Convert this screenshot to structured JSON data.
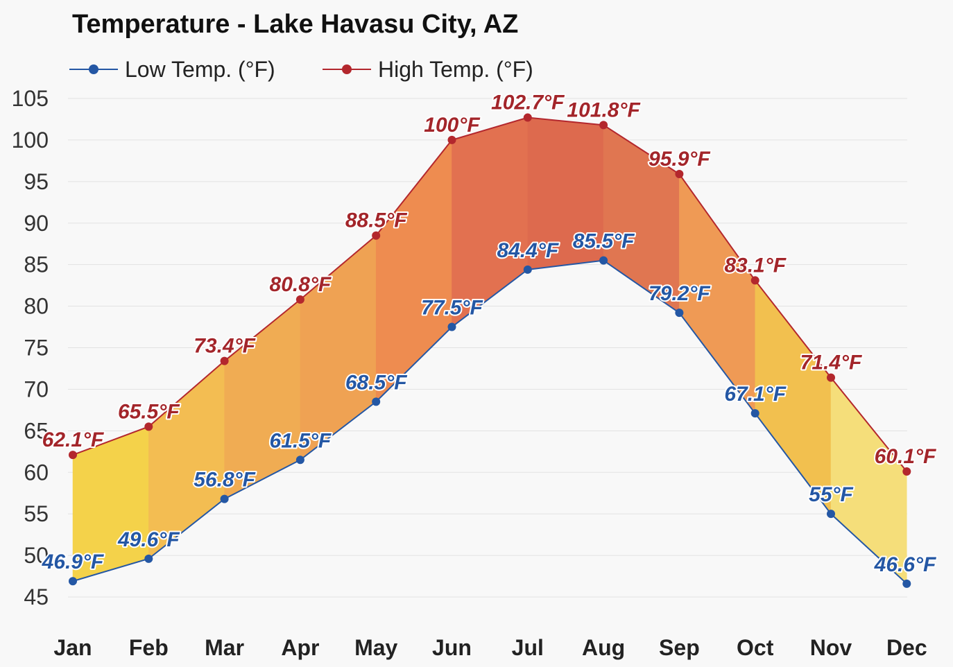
{
  "chart_data": {
    "type": "area",
    "title": "Temperature - Lake Havasu City, AZ",
    "categories": [
      "Jan",
      "Feb",
      "Mar",
      "Apr",
      "May",
      "Jun",
      "Jul",
      "Aug",
      "Sep",
      "Oct",
      "Nov",
      "Dec"
    ],
    "series": [
      {
        "name": "Low Temp. (°F)",
        "color": "#2457a4",
        "values": [
          46.9,
          49.6,
          56.8,
          61.5,
          68.5,
          77.5,
          84.4,
          85.5,
          79.2,
          67.1,
          55,
          46.6
        ]
      },
      {
        "name": "High Temp. (°F)",
        "color": "#b3272d",
        "values": [
          62.1,
          65.5,
          73.4,
          80.8,
          88.5,
          100,
          102.7,
          101.8,
          95.9,
          83.1,
          71.4,
          60.1
        ]
      }
    ],
    "data_labels": {
      "low": [
        "46.9°F",
        "49.6°F",
        "56.8°F",
        "61.5°F",
        "68.5°F",
        "77.5°F",
        "84.4°F",
        "85.5°F",
        "79.2°F",
        "67.1°F",
        "55°F",
        "46.6°F"
      ],
      "high": [
        "62.1°F",
        "65.5°F",
        "73.4°F",
        "80.8°F",
        "88.5°F",
        "100°F",
        "102.7°F",
        "101.8°F",
        "95.9°F",
        "83.1°F",
        "71.4°F",
        "60.1°F"
      ]
    },
    "ylim": [
      45,
      105
    ],
    "yticks": [
      45,
      50,
      55,
      60,
      65,
      70,
      75,
      80,
      85,
      90,
      95,
      100,
      105
    ],
    "grid": true,
    "legend_position": "top-left",
    "fill_colors": [
      "#f4d24a",
      "#f3bd52",
      "#f0ac53",
      "#efa253",
      "#ee8c50",
      "#e27150",
      "#dd6a4e",
      "#e07651",
      "#ef9a55",
      "#f2c04f",
      "#f5de7a"
    ]
  }
}
